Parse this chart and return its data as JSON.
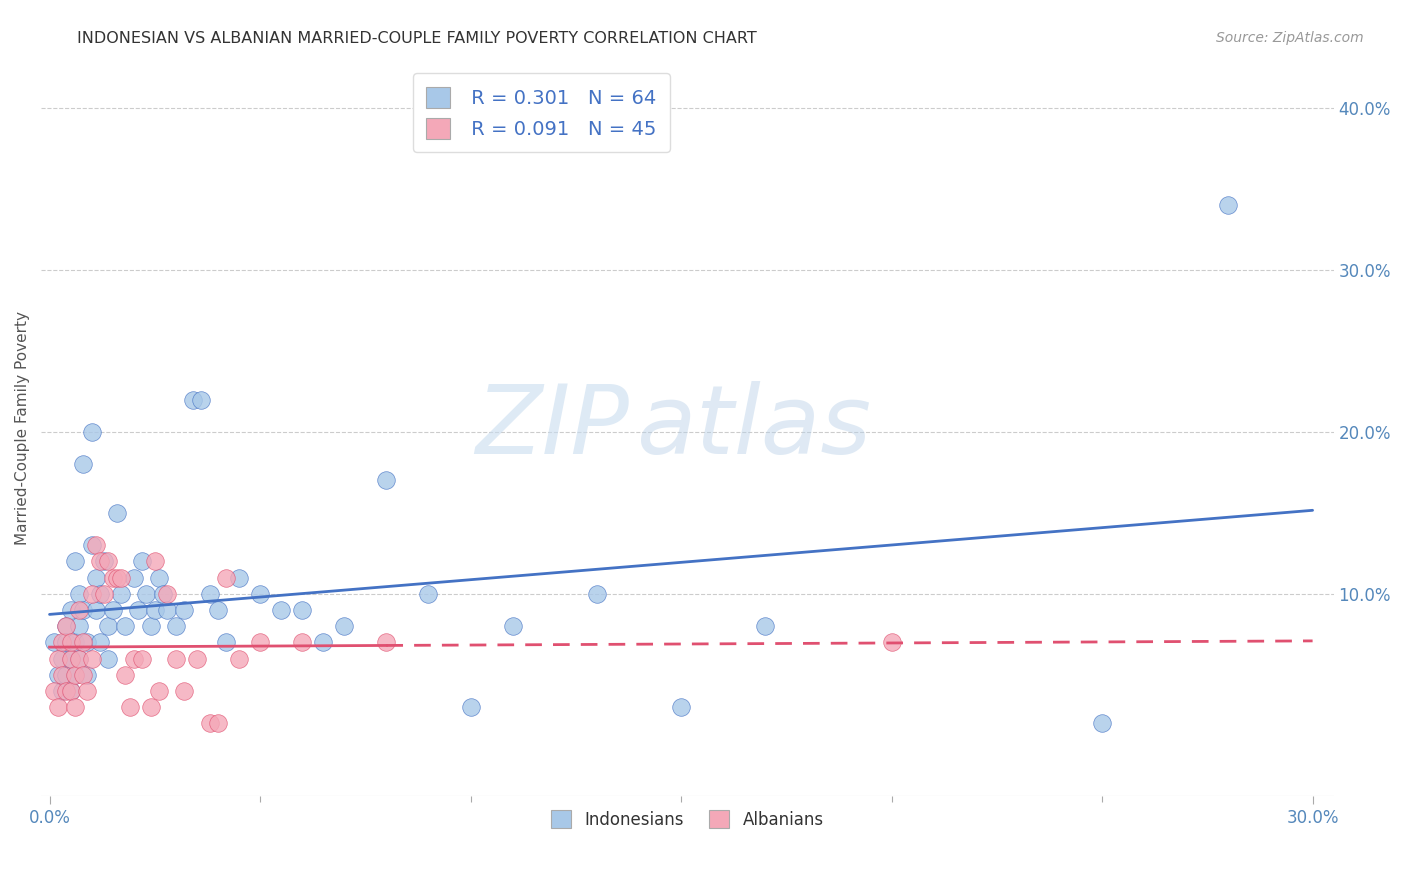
{
  "title": "INDONESIAN VS ALBANIAN MARRIED-COUPLE FAMILY POVERTY CORRELATION CHART",
  "source": "Source: ZipAtlas.com",
  "ylabel": "Married-Couple Family Poverty",
  "xlim": [
    -0.002,
    0.305
  ],
  "ylim": [
    -0.025,
    0.43
  ],
  "xtick_positions": [
    0.0,
    0.3
  ],
  "xtick_labels": [
    "0.0%",
    "30.0%"
  ],
  "xtick_minor": [
    0.05,
    0.1,
    0.15,
    0.2,
    0.25
  ],
  "ytick_right_positions": [
    0.1,
    0.2,
    0.3,
    0.4
  ],
  "ytick_right_labels": [
    "10.0%",
    "20.0%",
    "30.0%",
    "40.0%"
  ],
  "ytick_grid_positions": [
    0.1,
    0.2,
    0.3,
    0.4
  ],
  "legend_r1": "R = 0.301",
  "legend_n1": "N = 64",
  "legend_r2": "R = 0.091",
  "legend_n2": "N = 45",
  "indonesian_color": "#A8C8E8",
  "albanian_color": "#F4A8B8",
  "trend_blue": "#4472C4",
  "trend_pink": "#E05070",
  "background_color": "#FFFFFF",
  "indonesian_x": [
    0.001,
    0.002,
    0.003,
    0.003,
    0.004,
    0.004,
    0.004,
    0.005,
    0.005,
    0.005,
    0.006,
    0.006,
    0.006,
    0.007,
    0.007,
    0.007,
    0.008,
    0.008,
    0.009,
    0.009,
    0.01,
    0.01,
    0.011,
    0.011,
    0.012,
    0.012,
    0.013,
    0.014,
    0.014,
    0.015,
    0.016,
    0.017,
    0.018,
    0.02,
    0.021,
    0.022,
    0.023,
    0.024,
    0.025,
    0.026,
    0.027,
    0.028,
    0.03,
    0.032,
    0.034,
    0.036,
    0.038,
    0.04,
    0.042,
    0.045,
    0.05,
    0.055,
    0.06,
    0.065,
    0.07,
    0.08,
    0.09,
    0.1,
    0.11,
    0.13,
    0.15,
    0.17,
    0.25,
    0.28
  ],
  "indonesian_y": [
    0.07,
    0.05,
    0.06,
    0.04,
    0.08,
    0.05,
    0.07,
    0.09,
    0.06,
    0.04,
    0.12,
    0.07,
    0.05,
    0.08,
    0.06,
    0.1,
    0.18,
    0.09,
    0.07,
    0.05,
    0.2,
    0.13,
    0.09,
    0.11,
    0.1,
    0.07,
    0.12,
    0.08,
    0.06,
    0.09,
    0.15,
    0.1,
    0.08,
    0.11,
    0.09,
    0.12,
    0.1,
    0.08,
    0.09,
    0.11,
    0.1,
    0.09,
    0.08,
    0.09,
    0.22,
    0.22,
    0.1,
    0.09,
    0.07,
    0.11,
    0.1,
    0.09,
    0.09,
    0.07,
    0.08,
    0.17,
    0.1,
    0.03,
    0.08,
    0.1,
    0.03,
    0.08,
    0.02,
    0.34
  ],
  "albanian_x": [
    0.001,
    0.002,
    0.002,
    0.003,
    0.003,
    0.004,
    0.004,
    0.005,
    0.005,
    0.005,
    0.006,
    0.006,
    0.007,
    0.007,
    0.008,
    0.008,
    0.009,
    0.01,
    0.01,
    0.011,
    0.012,
    0.013,
    0.014,
    0.015,
    0.016,
    0.017,
    0.018,
    0.019,
    0.02,
    0.022,
    0.024,
    0.025,
    0.026,
    0.028,
    0.03,
    0.032,
    0.035,
    0.038,
    0.04,
    0.042,
    0.045,
    0.05,
    0.06,
    0.08,
    0.2
  ],
  "albanian_y": [
    0.04,
    0.06,
    0.03,
    0.07,
    0.05,
    0.04,
    0.08,
    0.06,
    0.04,
    0.07,
    0.05,
    0.03,
    0.09,
    0.06,
    0.05,
    0.07,
    0.04,
    0.1,
    0.06,
    0.13,
    0.12,
    0.1,
    0.12,
    0.11,
    0.11,
    0.11,
    0.05,
    0.03,
    0.06,
    0.06,
    0.03,
    0.12,
    0.04,
    0.1,
    0.06,
    0.04,
    0.06,
    0.02,
    0.02,
    0.11,
    0.06,
    0.07,
    0.07,
    0.07,
    0.07
  ]
}
